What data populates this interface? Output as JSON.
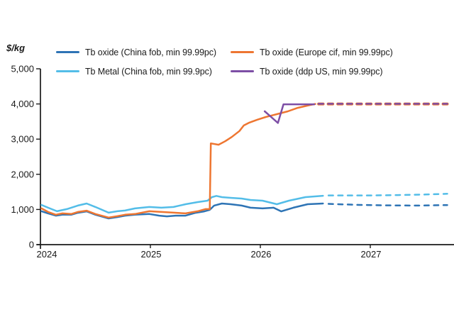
{
  "chart_data": {
    "type": "line",
    "ylabel": "$/kg",
    "grid": false,
    "legend_position": "top",
    "x_axis": {
      "min": 2024,
      "max": 2027.77,
      "tick_years": [
        2024,
        2025,
        2026,
        2027
      ],
      "tick_labels": [
        "2024",
        "2025",
        "2026",
        "2027"
      ]
    },
    "y_axis": {
      "min": 0,
      "max": 5000,
      "tick_step": 1000,
      "tick_labels": [
        "0",
        "1,000",
        "2,000",
        "3,000",
        "4,000",
        "5,000"
      ]
    },
    "series": [
      {
        "name": "tb-oxide-china-fob",
        "label": "Tb oxide (China fob, min 99.99pc)",
        "color": "#2e74b5",
        "solid": [
          [
            2024.01,
            950
          ],
          [
            2024.07,
            890
          ],
          [
            2024.14,
            825
          ],
          [
            2024.2,
            850
          ],
          [
            2024.28,
            850
          ],
          [
            2024.34,
            905
          ],
          [
            2024.42,
            945
          ],
          [
            2024.5,
            850
          ],
          [
            2024.62,
            745
          ],
          [
            2024.7,
            785
          ],
          [
            2024.77,
            825
          ],
          [
            2024.86,
            850
          ],
          [
            2024.99,
            870
          ],
          [
            2025.08,
            825
          ],
          [
            2025.15,
            805
          ],
          [
            2025.23,
            825
          ],
          [
            2025.32,
            825
          ],
          [
            2025.41,
            905
          ],
          [
            2025.49,
            945
          ],
          [
            2025.54,
            990
          ],
          [
            2025.58,
            1110
          ],
          [
            2025.65,
            1170
          ],
          [
            2025.73,
            1150
          ],
          [
            2025.83,
            1110
          ],
          [
            2025.91,
            1050
          ],
          [
            2026.02,
            1030
          ],
          [
            2026.12,
            1050
          ],
          [
            2026.19,
            945
          ],
          [
            2026.3,
            1050
          ],
          [
            2026.43,
            1150
          ],
          [
            2026.57,
            1170
          ]
        ],
        "dashed": [
          [
            2026.62,
            1160
          ],
          [
            2026.9,
            1130
          ],
          [
            2027.2,
            1115
          ],
          [
            2027.45,
            1110
          ],
          [
            2027.7,
            1125
          ]
        ]
      },
      {
        "name": "tb-oxide-europe-cif",
        "label": "Tb oxide (Europe cif, min 99.99pc)",
        "color": "#ee7631",
        "solid": [
          [
            2024.01,
            1030
          ],
          [
            2024.07,
            930
          ],
          [
            2024.14,
            850
          ],
          [
            2024.2,
            890
          ],
          [
            2024.28,
            870
          ],
          [
            2024.34,
            930
          ],
          [
            2024.42,
            965
          ],
          [
            2024.5,
            870
          ],
          [
            2024.62,
            770
          ],
          [
            2024.7,
            810
          ],
          [
            2024.77,
            850
          ],
          [
            2024.86,
            870
          ],
          [
            2024.99,
            950
          ],
          [
            2025.1,
            930
          ],
          [
            2025.21,
            910
          ],
          [
            2025.32,
            890
          ],
          [
            2025.43,
            950
          ],
          [
            2025.5,
            1010
          ],
          [
            2025.54,
            1010
          ],
          [
            2025.55,
            2880
          ],
          [
            2025.62,
            2840
          ],
          [
            2025.68,
            2940
          ],
          [
            2025.74,
            3060
          ],
          [
            2025.81,
            3230
          ],
          [
            2025.85,
            3390
          ],
          [
            2025.9,
            3470
          ],
          [
            2025.97,
            3550
          ],
          [
            2026.05,
            3630
          ],
          [
            2026.15,
            3710
          ],
          [
            2026.25,
            3790
          ],
          [
            2026.34,
            3890
          ],
          [
            2026.45,
            3970
          ],
          [
            2026.5,
            4000
          ]
        ],
        "dashed": [
          [
            2026.53,
            4000
          ],
          [
            2027.7,
            4000
          ]
        ]
      },
      {
        "name": "tb-metal-china-fob",
        "label": "Tb Metal (China fob, min 99.9pc)",
        "color": "#53bde8",
        "solid": [
          [
            2024.01,
            1130
          ],
          [
            2024.07,
            1050
          ],
          [
            2024.15,
            950
          ],
          [
            2024.24,
            1010
          ],
          [
            2024.34,
            1110
          ],
          [
            2024.42,
            1170
          ],
          [
            2024.5,
            1070
          ],
          [
            2024.62,
            910
          ],
          [
            2024.7,
            950
          ],
          [
            2024.77,
            970
          ],
          [
            2024.86,
            1030
          ],
          [
            2024.99,
            1070
          ],
          [
            2025.1,
            1050
          ],
          [
            2025.21,
            1070
          ],
          [
            2025.32,
            1150
          ],
          [
            2025.43,
            1210
          ],
          [
            2025.52,
            1250
          ],
          [
            2025.56,
            1350
          ],
          [
            2025.6,
            1385
          ],
          [
            2025.65,
            1350
          ],
          [
            2025.73,
            1330
          ],
          [
            2025.83,
            1310
          ],
          [
            2025.91,
            1270
          ],
          [
            2026.02,
            1250
          ],
          [
            2026.15,
            1150
          ],
          [
            2026.26,
            1250
          ],
          [
            2026.41,
            1350
          ],
          [
            2026.57,
            1390
          ]
        ],
        "dashed": [
          [
            2026.62,
            1400
          ],
          [
            2027.0,
            1400
          ],
          [
            2027.25,
            1410
          ],
          [
            2027.5,
            1425
          ],
          [
            2027.7,
            1445
          ]
        ]
      },
      {
        "name": "tb-oxide-ddp-us",
        "label": "Tb oxide (ddp US, min 99.99pc)",
        "color": "#7d4ea5",
        "solid": [
          [
            2026.04,
            3790
          ],
          [
            2026.16,
            3460
          ],
          [
            2026.21,
            3990
          ],
          [
            2026.49,
            3990
          ]
        ],
        "dashed": [
          [
            2026.53,
            4005
          ],
          [
            2027.7,
            4005
          ]
        ]
      }
    ]
  }
}
